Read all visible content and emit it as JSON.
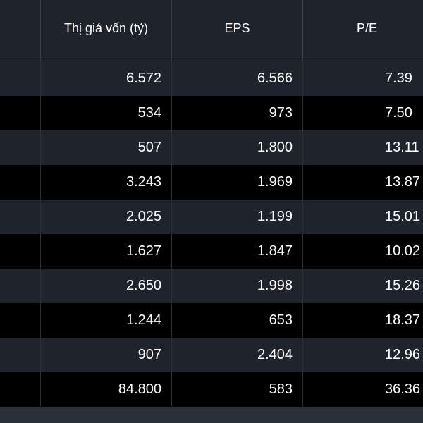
{
  "table": {
    "headers": [
      "",
      "Thị giá vốn (tỷ)",
      "EPS",
      "P/E"
    ],
    "rows": [
      {
        "market_cap": "6.572",
        "eps": "6.566",
        "pe": "7.39"
      },
      {
        "market_cap": "534",
        "eps": "973",
        "pe": "7.50"
      },
      {
        "market_cap": "507",
        "eps": "1.800",
        "pe": "13.11"
      },
      {
        "market_cap": "3.243",
        "eps": "1.969",
        "pe": "13.87"
      },
      {
        "market_cap": "2.025",
        "eps": "1.199",
        "pe": "15.01"
      },
      {
        "market_cap": "1.627",
        "eps": "1.847",
        "pe": "10.02"
      },
      {
        "market_cap": "2.650",
        "eps": "1.998",
        "pe": "15.26"
      },
      {
        "market_cap": "1.244",
        "eps": "653",
        "pe": "18.37"
      },
      {
        "market_cap": "907",
        "eps": "2.404",
        "pe": "12.96"
      },
      {
        "market_cap": "84.800",
        "eps": "583",
        "pe": "36.36"
      }
    ]
  },
  "colors": {
    "header_bg": "#1f242c",
    "row_odd_bg": "#1f242c",
    "row_even_bg": "#000000",
    "text": "#ffffff"
  }
}
